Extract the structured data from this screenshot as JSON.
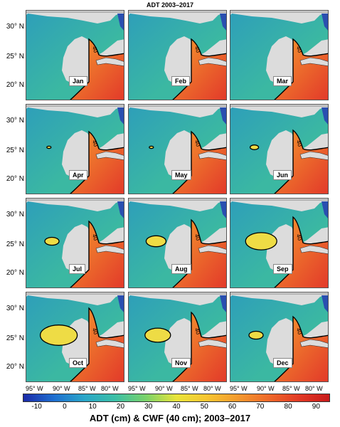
{
  "title": "ADT 2003–2017",
  "months": [
    "Jan",
    "Feb",
    "Mar",
    "Apr",
    "May",
    "Jun",
    "Jul",
    "Aug",
    "Sep",
    "Oct",
    "Nov",
    "Dec"
  ],
  "lat_labels": [
    "30° N",
    "25° N",
    "20° N"
  ],
  "lon_labels": [
    "95° W",
    "90° W",
    "85° W",
    "80° W"
  ],
  "contour_label": "40",
  "colorbar": {
    "ticks": [
      "-10",
      "0",
      "10",
      "20",
      "30",
      "40",
      "50",
      "60",
      "70",
      "80",
      "90"
    ],
    "range": [
      -15,
      95
    ],
    "colors": [
      "#1a2aa8",
      "#1f6fd0",
      "#2aa6c8",
      "#3bbfa6",
      "#7ad26a",
      "#e8e43a",
      "#f7c531",
      "#f39a2e",
      "#ee6a2a",
      "#e23a25",
      "#c81a1a"
    ]
  },
  "xlabel": "ADT (cm) & CWF (40 cm); 2003–2017"
}
